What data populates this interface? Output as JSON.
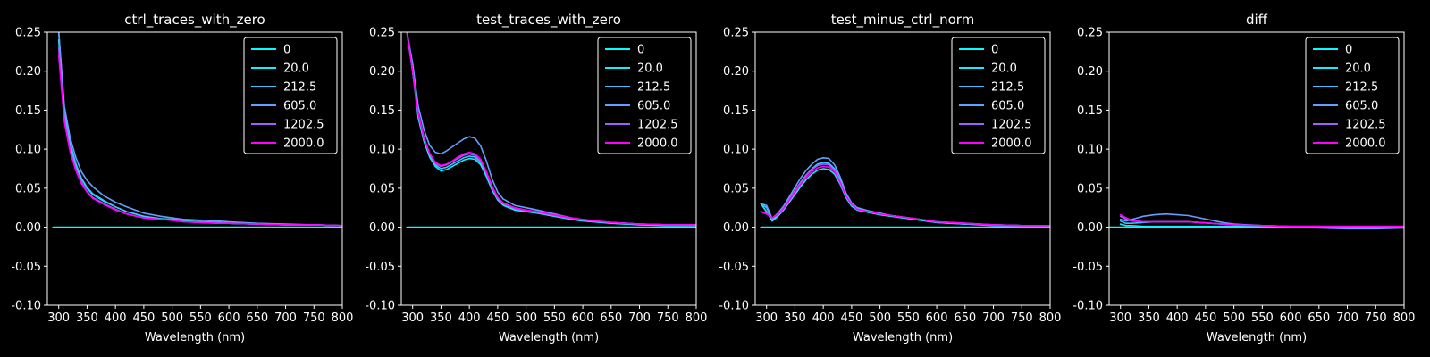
{
  "chart_data": [
    {
      "type": "line",
      "title": "ctrl_traces_with_zero",
      "xlabel": "Wavelength (nm)",
      "ylabel": "",
      "xlim": [
        280,
        800
      ],
      "ylim": [
        -0.1,
        0.25
      ],
      "xticks": [
        300,
        350,
        400,
        450,
        500,
        550,
        600,
        650,
        700,
        750,
        800
      ],
      "yticks": [
        -0.1,
        -0.05,
        0.0,
        0.05,
        0.1,
        0.15,
        0.2,
        0.25
      ],
      "legend_position": "top-right",
      "x": [
        290,
        300,
        310,
        320,
        330,
        340,
        350,
        360,
        380,
        400,
        420,
        450,
        480,
        500,
        520,
        550,
        580,
        600,
        650,
        700,
        750,
        800
      ],
      "series": [
        {
          "name": "0",
          "color": "#00ffff",
          "values": [
            0.0,
            0.0,
            0.0,
            0.0,
            0.0,
            0.0,
            0.0,
            0.0,
            0.0,
            0.0,
            0.0,
            0.0,
            0.0,
            0.0,
            0.0,
            0.0,
            0.0,
            0.0,
            0.0,
            0.0,
            0.0,
            0.0
          ]
        },
        {
          "name": "20.0",
          "color": "#12edff",
          "values": [
            null,
            0.24,
            0.145,
            0.105,
            0.08,
            0.062,
            0.05,
            0.042,
            0.033,
            0.026,
            0.02,
            0.014,
            0.011,
            0.01,
            0.008,
            0.007,
            0.006,
            0.005,
            0.004,
            0.003,
            0.003,
            0.002
          ]
        },
        {
          "name": "212.5",
          "color": "#3dc2ff",
          "values": [
            null,
            0.25,
            0.15,
            0.108,
            0.082,
            0.063,
            0.051,
            0.043,
            0.034,
            0.026,
            0.02,
            0.014,
            0.011,
            0.01,
            0.008,
            0.007,
            0.006,
            0.005,
            0.004,
            0.003,
            0.003,
            0.002
          ]
        },
        {
          "name": "605.0",
          "color": "#60a0ff",
          "values": [
            null,
            0.25,
            0.155,
            0.115,
            0.09,
            0.071,
            0.06,
            0.052,
            0.04,
            0.032,
            0.026,
            0.018,
            0.014,
            0.012,
            0.01,
            0.009,
            0.008,
            0.007,
            0.005,
            0.004,
            0.003,
            0.002
          ]
        },
        {
          "name": "1202.5",
          "color": "#a05ff8",
          "values": [
            null,
            0.23,
            0.14,
            0.1,
            0.075,
            0.058,
            0.046,
            0.038,
            0.03,
            0.023,
            0.017,
            0.012,
            0.01,
            0.009,
            0.007,
            0.006,
            0.005,
            0.005,
            0.004,
            0.003,
            0.003,
            0.002
          ]
        },
        {
          "name": "2000.0",
          "color": "#ff00ff",
          "values": [
            null,
            0.22,
            0.135,
            0.097,
            0.073,
            0.056,
            0.045,
            0.037,
            0.029,
            0.022,
            0.017,
            0.012,
            0.01,
            0.009,
            0.007,
            0.006,
            0.005,
            0.005,
            0.004,
            0.003,
            0.003,
            0.002
          ]
        }
      ]
    },
    {
      "type": "line",
      "title": "test_traces_with_zero",
      "xlabel": "Wavelength (nm)",
      "ylabel": "",
      "xlim": [
        280,
        800
      ],
      "ylim": [
        -0.1,
        0.25
      ],
      "xticks": [
        300,
        350,
        400,
        450,
        500,
        550,
        600,
        650,
        700,
        750,
        800
      ],
      "yticks": [
        -0.1,
        -0.05,
        0.0,
        0.05,
        0.1,
        0.15,
        0.2,
        0.25
      ],
      "legend_position": "top-right",
      "x": [
        290,
        300,
        310,
        320,
        330,
        340,
        350,
        360,
        370,
        380,
        390,
        400,
        410,
        420,
        430,
        440,
        450,
        460,
        470,
        480,
        500,
        520,
        550,
        580,
        600,
        650,
        700,
        750,
        800
      ],
      "series": [
        {
          "name": "0",
          "color": "#00ffff",
          "values": [
            0.0,
            0.0,
            0.0,
            0.0,
            0.0,
            0.0,
            0.0,
            0.0,
            0.0,
            0.0,
            0.0,
            0.0,
            0.0,
            0.0,
            0.0,
            0.0,
            0.0,
            0.0,
            0.0,
            0.0,
            0.0,
            0.0,
            0.0,
            0.0,
            0.0,
            0.0,
            0.0,
            0.0,
            0.0
          ]
        },
        {
          "name": "20.0",
          "color": "#12edff",
          "values": [
            0.25,
            0.2,
            0.14,
            0.11,
            0.09,
            0.078,
            0.072,
            0.074,
            0.078,
            0.082,
            0.086,
            0.088,
            0.087,
            0.08,
            0.065,
            0.048,
            0.035,
            0.028,
            0.025,
            0.022,
            0.02,
            0.018,
            0.014,
            0.01,
            0.008,
            0.005,
            0.003,
            0.002,
            0.002
          ]
        },
        {
          "name": "212.5",
          "color": "#3dc2ff",
          "values": [
            0.25,
            0.2,
            0.145,
            0.115,
            0.093,
            0.08,
            0.075,
            0.077,
            0.081,
            0.085,
            0.089,
            0.091,
            0.09,
            0.083,
            0.068,
            0.05,
            0.037,
            0.03,
            0.027,
            0.024,
            0.021,
            0.019,
            0.015,
            0.011,
            0.009,
            0.006,
            0.004,
            0.003,
            0.003
          ]
        },
        {
          "name": "605.0",
          "color": "#60a0ff",
          "values": [
            0.25,
            0.21,
            0.155,
            0.125,
            0.105,
            0.096,
            0.094,
            0.098,
            0.103,
            0.108,
            0.113,
            0.116,
            0.114,
            0.104,
            0.085,
            0.062,
            0.045,
            0.036,
            0.032,
            0.028,
            0.025,
            0.022,
            0.017,
            0.012,
            0.009,
            0.006,
            0.004,
            0.003,
            0.002
          ]
        },
        {
          "name": "1202.5",
          "color": "#a05ff8",
          "values": [
            0.25,
            0.2,
            0.145,
            0.113,
            0.094,
            0.082,
            0.078,
            0.08,
            0.084,
            0.088,
            0.092,
            0.094,
            0.092,
            0.085,
            0.069,
            0.051,
            0.037,
            0.03,
            0.027,
            0.024,
            0.021,
            0.019,
            0.015,
            0.011,
            0.009,
            0.006,
            0.004,
            0.003,
            0.003
          ]
        },
        {
          "name": "2000.0",
          "color": "#ff00ff",
          "values": [
            0.25,
            0.2,
            0.145,
            0.114,
            0.095,
            0.083,
            0.079,
            0.081,
            0.085,
            0.09,
            0.094,
            0.096,
            0.094,
            0.087,
            0.071,
            0.053,
            0.038,
            0.031,
            0.028,
            0.025,
            0.022,
            0.02,
            0.016,
            0.012,
            0.01,
            0.006,
            0.004,
            0.003,
            0.003
          ]
        }
      ]
    },
    {
      "type": "line",
      "title": "test_minus_ctrl_norm",
      "xlabel": "Wavelength (nm)",
      "ylabel": "",
      "xlim": [
        280,
        800
      ],
      "ylim": [
        -0.1,
        0.25
      ],
      "xticks": [
        300,
        350,
        400,
        450,
        500,
        550,
        600,
        650,
        700,
        750,
        800
      ],
      "yticks": [
        -0.1,
        -0.05,
        0.0,
        0.05,
        0.1,
        0.15,
        0.2,
        0.25
      ],
      "legend_position": "top-right",
      "x": [
        290,
        300,
        310,
        320,
        330,
        340,
        350,
        360,
        370,
        380,
        390,
        400,
        410,
        420,
        430,
        440,
        450,
        460,
        480,
        500,
        520,
        550,
        580,
        600,
        650,
        700,
        750,
        800
      ],
      "series": [
        {
          "name": "0",
          "color": "#00ffff",
          "values": [
            0.0,
            0.0,
            0.0,
            0.0,
            0.0,
            0.0,
            0.0,
            0.0,
            0.0,
            0.0,
            0.0,
            0.0,
            0.0,
            0.0,
            0.0,
            0.0,
            0.0,
            0.0,
            0.0,
            0.0,
            0.0,
            0.0,
            0.0,
            0.0,
            0.0,
            0.0,
            0.0,
            0.0
          ]
        },
        {
          "name": "20.0",
          "color": "#12edff",
          "values": [
            0.03,
            0.02,
            0.008,
            0.014,
            0.022,
            0.032,
            0.042,
            0.052,
            0.061,
            0.068,
            0.073,
            0.075,
            0.074,
            0.068,
            0.055,
            0.038,
            0.027,
            0.022,
            0.019,
            0.016,
            0.014,
            0.011,
            0.008,
            0.006,
            0.004,
            0.003,
            0.002,
            0.002
          ]
        },
        {
          "name": "212.5",
          "color": "#3dc2ff",
          "values": [
            0.03,
            0.025,
            0.01,
            0.016,
            0.024,
            0.035,
            0.046,
            0.057,
            0.067,
            0.075,
            0.081,
            0.083,
            0.082,
            0.075,
            0.06,
            0.041,
            0.029,
            0.024,
            0.02,
            0.017,
            0.015,
            0.012,
            0.009,
            0.007,
            0.005,
            0.003,
            0.002,
            0.002
          ]
        },
        {
          "name": "605.0",
          "color": "#60a0ff",
          "values": [
            0.03,
            0.028,
            0.011,
            0.018,
            0.027,
            0.039,
            0.051,
            0.063,
            0.073,
            0.081,
            0.087,
            0.089,
            0.088,
            0.08,
            0.064,
            0.044,
            0.031,
            0.025,
            0.021,
            0.018,
            0.015,
            0.012,
            0.009,
            0.006,
            0.004,
            0.002,
            0.001,
            0.001
          ]
        },
        {
          "name": "1202.5",
          "color": "#a05ff8",
          "values": [
            0.02,
            0.018,
            0.012,
            0.017,
            0.025,
            0.036,
            0.047,
            0.058,
            0.067,
            0.074,
            0.079,
            0.081,
            0.08,
            0.073,
            0.058,
            0.04,
            0.029,
            0.023,
            0.02,
            0.017,
            0.015,
            0.012,
            0.009,
            0.007,
            0.005,
            0.003,
            0.002,
            0.002
          ]
        },
        {
          "name": "2000.0",
          "color": "#ff00ff",
          "values": [
            0.02,
            0.017,
            0.012,
            0.016,
            0.024,
            0.034,
            0.045,
            0.055,
            0.064,
            0.071,
            0.076,
            0.078,
            0.077,
            0.071,
            0.057,
            0.04,
            0.029,
            0.023,
            0.02,
            0.017,
            0.015,
            0.012,
            0.009,
            0.007,
            0.005,
            0.003,
            0.002,
            0.002
          ]
        }
      ]
    },
    {
      "type": "line",
      "title": "diff",
      "xlabel": "Wavelength (nm)",
      "ylabel": "",
      "xlim": [
        280,
        800
      ],
      "ylim": [
        -0.1,
        0.25
      ],
      "xticks": [
        300,
        350,
        400,
        450,
        500,
        550,
        600,
        650,
        700,
        750,
        800
      ],
      "yticks": [
        -0.1,
        -0.05,
        0.0,
        0.05,
        0.1,
        0.15,
        0.2,
        0.25
      ],
      "legend_position": "top-right",
      "x": [
        280,
        290,
        300,
        310,
        320,
        340,
        360,
        380,
        400,
        420,
        440,
        460,
        480,
        500,
        550,
        600,
        650,
        700,
        750,
        800
      ],
      "series": [
        {
          "name": "0",
          "color": "#00ffff",
          "values": [
            0.0,
            0.0,
            0.0,
            0.0,
            0.0,
            0.0,
            0.0,
            0.0,
            0.0,
            0.0,
            0.0,
            0.0,
            0.0,
            0.0,
            0.0,
            0.0,
            0.0,
            0.0,
            0.0,
            0.0
          ]
        },
        {
          "name": "20.0",
          "color": "#12edff",
          "values": [
            null,
            null,
            0.004,
            0.002,
            0.002,
            0.001,
            0.001,
            0.001,
            0.001,
            0.001,
            0.001,
            0.001,
            0.001,
            0.001,
            0.001,
            0.0,
            0.0,
            0.0,
            0.0,
            0.0
          ]
        },
        {
          "name": "212.5",
          "color": "#3dc2ff",
          "values": [
            null,
            null,
            0.008,
            0.005,
            0.005,
            0.006,
            0.007,
            0.007,
            0.007,
            0.007,
            0.006,
            0.005,
            0.004,
            0.003,
            0.002,
            0.001,
            0.001,
            0.0,
            0.0,
            0.0
          ]
        },
        {
          "name": "605.0",
          "color": "#60a0ff",
          "values": [
            null,
            null,
            0.01,
            0.008,
            0.01,
            0.014,
            0.016,
            0.017,
            0.016,
            0.015,
            0.012,
            0.009,
            0.006,
            0.004,
            0.002,
            0.0,
            -0.001,
            -0.002,
            -0.002,
            -0.001
          ]
        },
        {
          "name": "1202.5",
          "color": "#a05ff8",
          "values": [
            null,
            null,
            0.014,
            0.01,
            0.008,
            0.007,
            0.007,
            0.007,
            0.007,
            0.007,
            0.006,
            0.005,
            0.004,
            0.003,
            0.002,
            0.001,
            0.001,
            0.001,
            0.001,
            0.001
          ]
        },
        {
          "name": "2000.0",
          "color": "#ff00ff",
          "values": [
            null,
            null,
            0.016,
            0.012,
            0.009,
            0.007,
            0.007,
            0.007,
            0.007,
            0.007,
            0.006,
            0.005,
            0.004,
            0.003,
            0.002,
            0.001,
            0.001,
            0.001,
            0.001,
            0.001
          ]
        }
      ]
    }
  ]
}
